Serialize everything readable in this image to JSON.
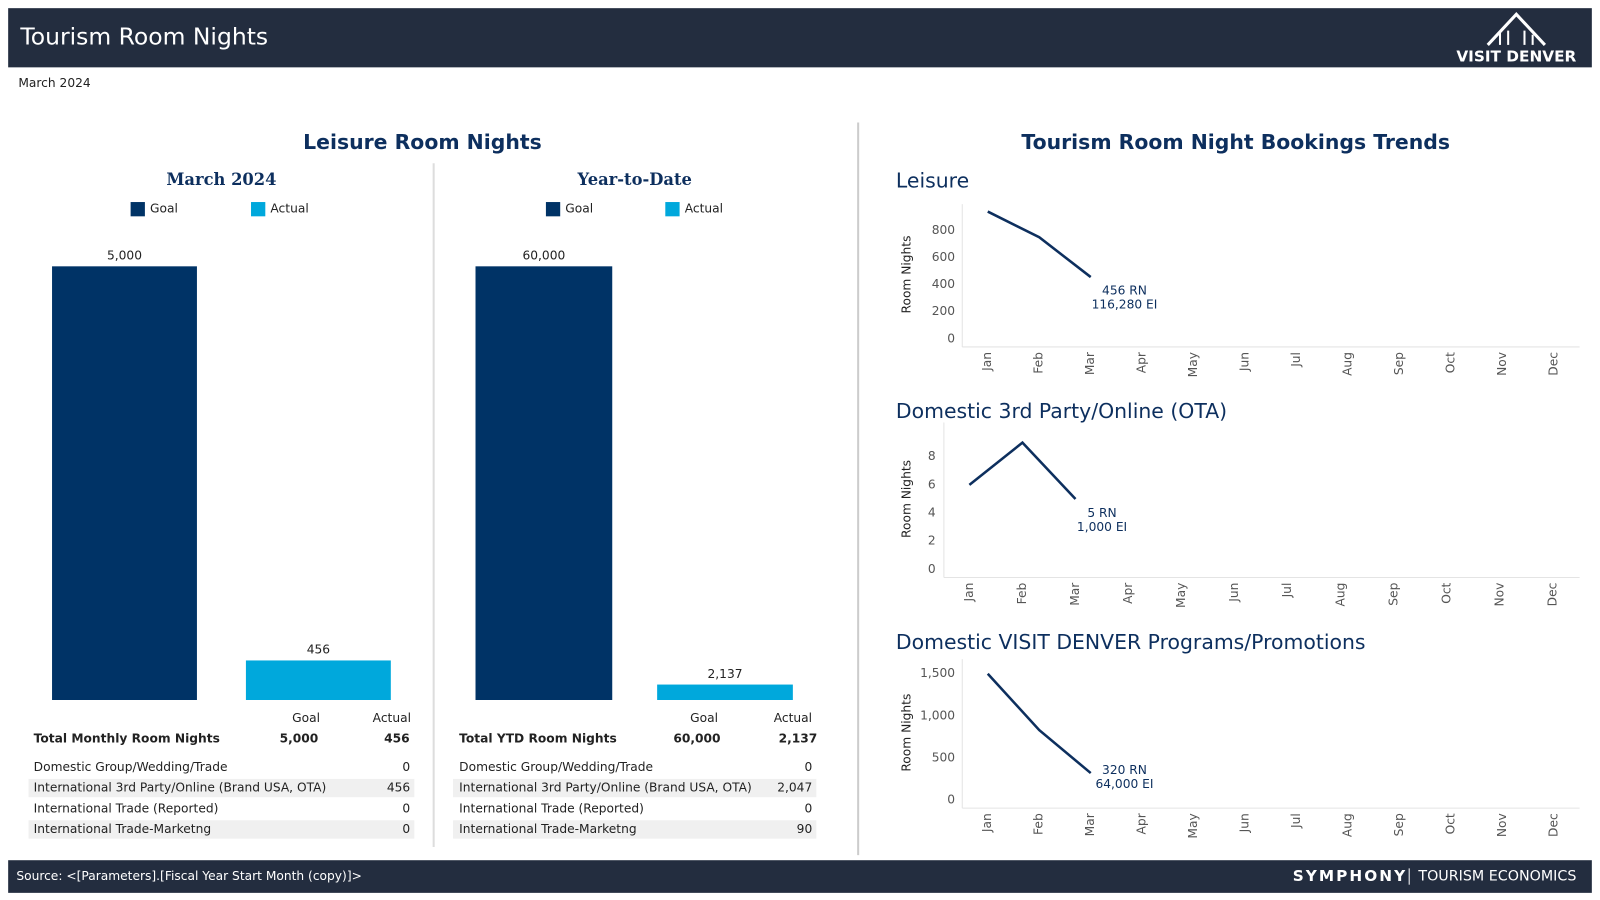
{
  "header": {
    "title": "Tourism Room Nights",
    "logo": "VISIT DENVER",
    "period": "March 2024"
  },
  "sections": {
    "left": "Leisure Room Nights",
    "right": "Tourism Room Night Bookings Trends"
  },
  "chart_data": [
    {
      "type": "bar",
      "title": "March 2024",
      "series": [
        {
          "name": "Goal",
          "color": "#003366",
          "values": [
            5000
          ],
          "value_labels": [
            "5,000"
          ]
        },
        {
          "name": "Actual",
          "color": "#00a8dc",
          "values": [
            456
          ],
          "value_labels": [
            "456"
          ]
        }
      ]
    },
    {
      "type": "bar",
      "title": "Year-to-Date",
      "series": [
        {
          "name": "Goal",
          "color": "#003366",
          "values": [
            60000
          ],
          "value_labels": [
            "60,000"
          ]
        },
        {
          "name": "Actual",
          "color": "#00a8dc",
          "values": [
            2137
          ],
          "value_labels": [
            "2,137"
          ]
        }
      ]
    },
    {
      "type": "line",
      "title": "Leisure",
      "ylabel": "Room Nights",
      "categories": [
        "Jan",
        "Feb",
        "Mar",
        "Apr",
        "May",
        "Jun",
        "Jul",
        "Aug",
        "Sep",
        "Oct",
        "Nov",
        "Dec"
      ],
      "values": [
        940,
        750,
        456,
        null,
        null,
        null,
        null,
        null,
        null,
        null,
        null,
        null
      ],
      "color": "#0d2f5e",
      "ylim": [
        0,
        950
      ],
      "yticks": [
        0,
        200,
        400,
        600,
        800
      ],
      "grid": false,
      "annotations": [
        "456 RN",
        "116,280 EI"
      ]
    },
    {
      "type": "line",
      "title": "Domestic 3rd Party/Online (OTA)",
      "ylabel": "Room Nights",
      "categories": [
        "Jan",
        "Feb",
        "Mar",
        "Apr",
        "May",
        "Jun",
        "Jul",
        "Aug",
        "Sep",
        "Oct",
        "Nov",
        "Dec"
      ],
      "values": [
        6,
        9,
        5,
        null,
        null,
        null,
        null,
        null,
        null,
        null,
        null,
        null
      ],
      "color": "#0d2f5e",
      "ylim": [
        0,
        10
      ],
      "yticks": [
        0,
        2,
        4,
        6,
        8
      ],
      "grid": false,
      "annotations": [
        "5 RN",
        "1,000 EI"
      ]
    },
    {
      "type": "line",
      "title": "Domestic VISIT DENVER Programs/Promotions",
      "ylabel": "Room Nights",
      "categories": [
        "Jan",
        "Feb",
        "Mar",
        "Apr",
        "May",
        "Jun",
        "Jul",
        "Aug",
        "Sep",
        "Oct",
        "Nov",
        "Dec"
      ],
      "values": [
        1500,
        830,
        320,
        null,
        null,
        null,
        null,
        null,
        null,
        null,
        null,
        null
      ],
      "color": "#0d2f5e",
      "ylim": [
        0,
        1600
      ],
      "yticks": [
        0,
        500,
        {
          "value": 1000,
          "label": "1,000"
        },
        {
          "value": 1500,
          "label": "1,500"
        }
      ],
      "grid": false,
      "annotations": [
        "320 RN",
        "64,000 EI"
      ]
    }
  ],
  "tables": [
    {
      "columns": [
        "Goal",
        "Actual"
      ],
      "total": [
        "Total Monthly Room Nights",
        "5,000",
        "456"
      ],
      "rows": [
        [
          "Domestic Group/Wedding/Trade",
          "0"
        ],
        [
          "International 3rd Party/Online (Brand USA, OTA)",
          "456"
        ],
        [
          "International Trade (Reported)",
          "0"
        ],
        [
          "International Trade-Marketng",
          "0"
        ]
      ]
    },
    {
      "columns": [
        "Goal",
        "Actual"
      ],
      "total": [
        "Total YTD Room Nights",
        "60,000",
        "2,137"
      ],
      "rows": [
        [
          "Domestic Group/Wedding/Trade",
          "0"
        ],
        [
          "International 3rd Party/Online (Brand USA, OTA)",
          "2,047"
        ],
        [
          "International Trade (Reported)",
          "0"
        ],
        [
          "International Trade-Marketng",
          "90"
        ]
      ]
    }
  ],
  "footer": {
    "source": "Source: <[Parameters].[Fiscal Year Start Month (copy)]>",
    "brand": "SYMPHONY",
    "brand_sub": "TOURISM ECONOMICS"
  }
}
